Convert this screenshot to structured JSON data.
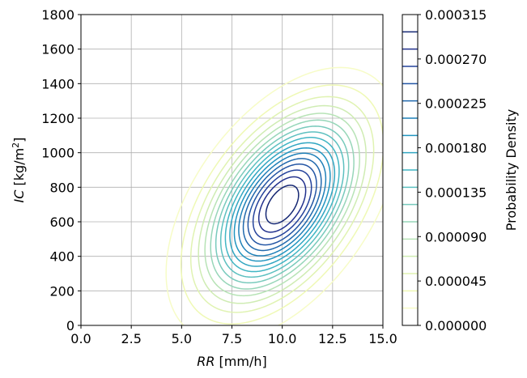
{
  "chart_data": {
    "type": "contour",
    "xlabel_var": "RR",
    "xlabel_unit": " [mm/h]",
    "ylabel_var": "IC",
    "ylabel_unit_pre": " [kg/m",
    "ylabel_unit_sup": "2",
    "ylabel_unit_post": "]",
    "xlim": [
      0,
      15
    ],
    "ylim": [
      0,
      1800
    ],
    "x_ticks": [
      0,
      2.5,
      5,
      7.5,
      10,
      12.5,
      15
    ],
    "x_tick_labels": [
      "0.0",
      "2.5",
      "5.0",
      "7.5",
      "10.0",
      "12.5",
      "15.0"
    ],
    "y_ticks": [
      0,
      200,
      400,
      600,
      800,
      1000,
      1200,
      1400,
      1600,
      1800
    ],
    "y_tick_labels": [
      "0",
      "200",
      "400",
      "600",
      "800",
      "1000",
      "1200",
      "1400",
      "1600",
      "1800"
    ],
    "grid": true,
    "distribution": {
      "mean": [
        10.0,
        700
      ],
      "std": [
        2.4,
        330
      ],
      "correlation": 0.5,
      "peak_density": 0.000315
    },
    "contour_levels": [
      1.75e-05,
      3.5e-05,
      5.25e-05,
      7e-05,
      8.75e-05,
      0.000105,
      0.0001225,
      0.00014,
      0.0001575,
      0.000175,
      0.0001925,
      0.00021,
      0.0002275,
      0.000245,
      0.0002625,
      0.00028,
      0.0002975
    ],
    "colormap": "YlGnBu",
    "colormap_stops": [
      "#ffffd9",
      "#edf8b1",
      "#c7e9b4",
      "#7fcdbb",
      "#41b6c4",
      "#1d91c0",
      "#225ea8",
      "#253494",
      "#081d58"
    ],
    "colorbar": {
      "label": "Probability Density",
      "ticks": [
        0,
        4.5e-05,
        9e-05,
        0.000135,
        0.00018,
        0.000225,
        0.00027,
        0.000315
      ],
      "tick_labels": [
        "0.000000",
        "0.000045",
        "0.000090",
        "0.000135",
        "0.000180",
        "0.000225",
        "0.000270",
        "0.000315"
      ]
    }
  }
}
